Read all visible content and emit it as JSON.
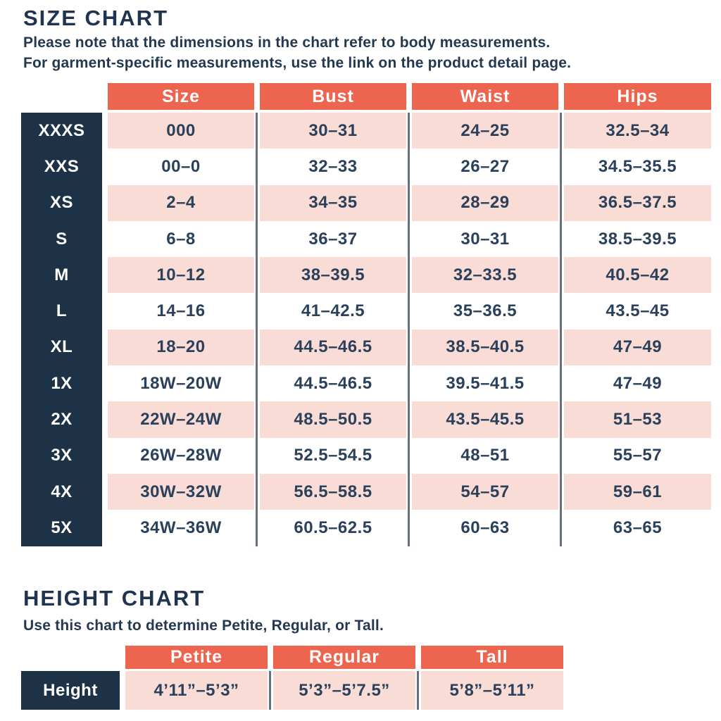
{
  "colors": {
    "header_orange": "#ed644f",
    "row_pink": "#f9dcd5",
    "label_navy": "#1d3147",
    "text_navy": "#24384f",
    "divider_gray": "#64707f"
  },
  "size_chart": {
    "title": "SIZE CHART",
    "subtitle_line1": "Please note that the dimensions in the chart refer to body measurements.",
    "subtitle_line2": "For garment-specific measurements, use the link on the product detail page.",
    "columns": [
      "Size",
      "Bust",
      "Waist",
      "Hips"
    ],
    "rows": [
      {
        "label": "XXXS",
        "size": "000",
        "bust": "30–31",
        "waist": "24–25",
        "hips": "32.5–34"
      },
      {
        "label": "XXS",
        "size": "00–0",
        "bust": "32–33",
        "waist": "26–27",
        "hips": "34.5–35.5"
      },
      {
        "label": "XS",
        "size": "2–4",
        "bust": "34–35",
        "waist": "28–29",
        "hips": "36.5–37.5"
      },
      {
        "label": "S",
        "size": "6–8",
        "bust": "36–37",
        "waist": "30–31",
        "hips": "38.5–39.5"
      },
      {
        "label": "M",
        "size": "10–12",
        "bust": "38–39.5",
        "waist": "32–33.5",
        "hips": "40.5–42"
      },
      {
        "label": "L",
        "size": "14–16",
        "bust": "41–42.5",
        "waist": "35–36.5",
        "hips": "43.5–45"
      },
      {
        "label": "XL",
        "size": "18–20",
        "bust": "44.5–46.5",
        "waist": "38.5–40.5",
        "hips": "47–49"
      },
      {
        "label": "1X",
        "size": "18W–20W",
        "bust": "44.5–46.5",
        "waist": "39.5–41.5",
        "hips": "47–49"
      },
      {
        "label": "2X",
        "size": "22W–24W",
        "bust": "48.5–50.5",
        "waist": "43.5–45.5",
        "hips": "51–53"
      },
      {
        "label": "3X",
        "size": "26W–28W",
        "bust": "52.5–54.5",
        "waist": "48–51",
        "hips": "55–57"
      },
      {
        "label": "4X",
        "size": "30W–32W",
        "bust": "56.5–58.5",
        "waist": "54–57",
        "hips": "59–61"
      },
      {
        "label": "5X",
        "size": "34W–36W",
        "bust": "60.5–62.5",
        "waist": "60–63",
        "hips": "63–65"
      }
    ]
  },
  "height_chart": {
    "title": "HEIGHT CHART",
    "subtitle": "Use this chart to determine Petite, Regular, or Tall.",
    "columns": [
      "Petite",
      "Regular",
      "Tall"
    ],
    "row_label": "Height",
    "values": [
      "4’11”–5’3”",
      "5’3”–5’7.5”",
      "5’8”–5’11”"
    ]
  }
}
